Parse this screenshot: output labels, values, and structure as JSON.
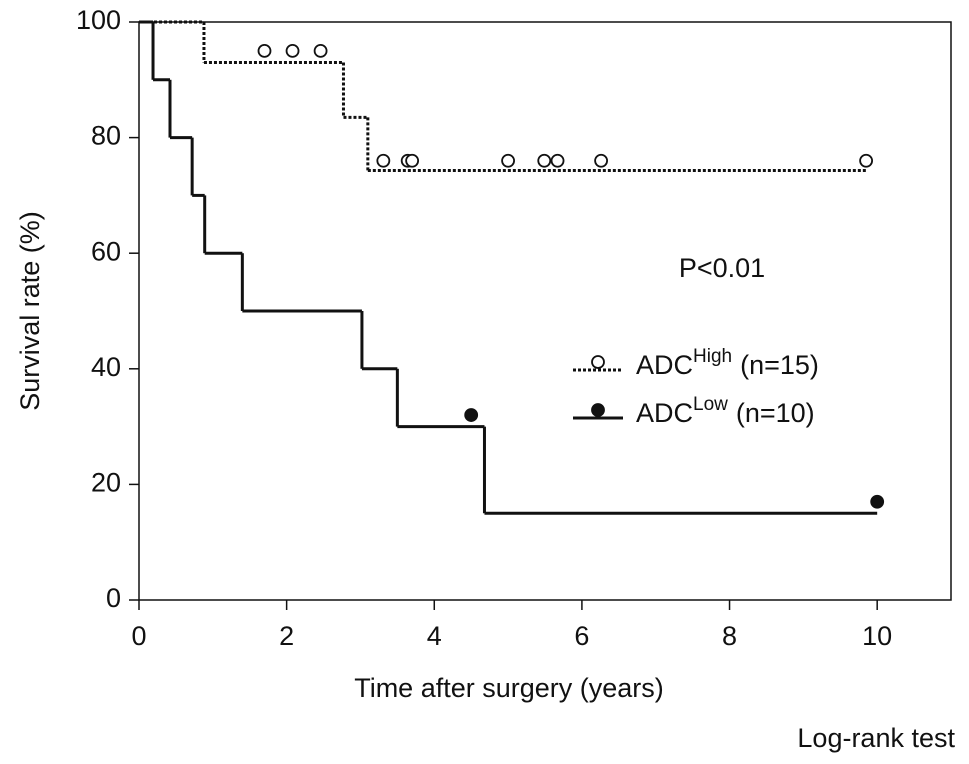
{
  "chart_data": {
    "type": "km",
    "xlabel": "Time after surgery (years)",
    "ylabel": "Survival rate (%)",
    "annotations": [
      "P<0.01",
      "Log-rank test"
    ],
    "xlim": [
      0,
      11
    ],
    "xticks": [
      0,
      2,
      4,
      6,
      8,
      10
    ],
    "ylim": [
      0,
      100
    ],
    "yticks": [
      0,
      20,
      40,
      60,
      80,
      100
    ],
    "series": [
      {
        "name": "ADC",
        "name_sup": "High",
        "name_suffix": "(n=15)",
        "color": "#111111",
        "style": "dotted",
        "marker": "open",
        "x": [
          0,
          0.88,
          2.77,
          3.1,
          9.87
        ],
        "values": [
          100,
          93,
          83.5,
          74.3,
          74.3
        ],
        "censored_x": [
          1.7,
          2.08,
          2.46,
          3.31,
          3.64,
          3.7,
          5.0,
          5.49,
          5.67,
          6.26,
          9.85
        ],
        "censored_values": [
          95,
          95,
          95,
          76,
          76,
          76,
          76,
          76,
          76,
          76,
          76
        ]
      },
      {
        "name": "ADC",
        "name_sup": "Low",
        "name_suffix": "(n=10)",
        "color": "#111111",
        "style": "solid",
        "marker": "filled",
        "x": [
          0,
          0.19,
          0.42,
          0.72,
          0.89,
          1.4,
          3.02,
          3.5,
          4.68,
          10.0
        ],
        "values": [
          100,
          90,
          80,
          70,
          60,
          50,
          40,
          30,
          15,
          15
        ],
        "censored_x": [
          4.5,
          10.0
        ],
        "censored_values": [
          32,
          17
        ]
      }
    ]
  }
}
